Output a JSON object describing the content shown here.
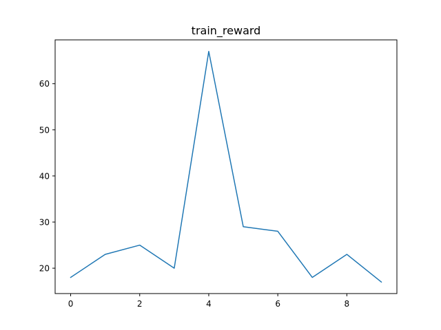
{
  "chart_data": {
    "type": "line",
    "title": "train_reward",
    "xlabel": "",
    "ylabel": "",
    "xlim": [
      -0.45,
      9.45
    ],
    "ylim": [
      14.5,
      69.5
    ],
    "x_ticks": [
      0,
      2,
      4,
      6,
      8
    ],
    "y_ticks": [
      20,
      30,
      40,
      50,
      60
    ],
    "grid": false,
    "series": [
      {
        "color": "#1f77b4",
        "x": [
          0,
          1,
          2,
          3,
          4,
          5,
          6,
          7,
          8,
          9
        ],
        "y": [
          18,
          23,
          25,
          20,
          67,
          29,
          28,
          18,
          23,
          17
        ]
      }
    ]
  }
}
